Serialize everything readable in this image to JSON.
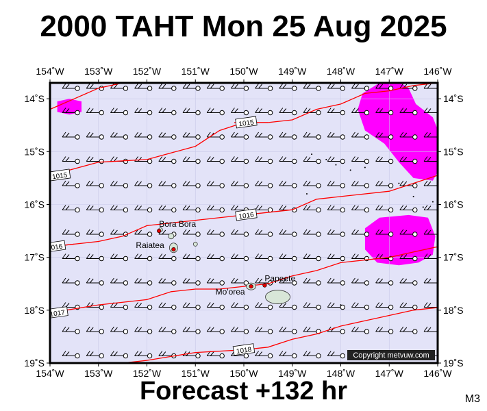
{
  "title": "2000 TAHT Mon 25 Aug 2025",
  "subtitle": "Forecast +132 hr",
  "code": "M3",
  "copyright": "Copyright metvuw.com",
  "colors": {
    "ocean": "#e3e3f8",
    "precip": "#ff00ff",
    "isobar": "#ff0000",
    "land": "#d8e6d8",
    "town": "#e00000",
    "copyright_bg": "#222222"
  },
  "map": {
    "lon_range": [
      -154,
      -146
    ],
    "lat_range": [
      -19,
      -13.7
    ],
    "lon_ticks": [
      {
        "value": -154,
        "label": "154˚W"
      },
      {
        "value": -153,
        "label": "153˚W"
      },
      {
        "value": -152,
        "label": "152˚W"
      },
      {
        "value": -151,
        "label": "151˚W"
      },
      {
        "value": -150,
        "label": "150˚W"
      },
      {
        "value": -149,
        "label": "149˚W"
      },
      {
        "value": -148,
        "label": "148˚W"
      },
      {
        "value": -147,
        "label": "147˚W"
      },
      {
        "value": -146,
        "label": "146˚W"
      }
    ],
    "lat_ticks": [
      {
        "value": -14,
        "label": "14˚S"
      },
      {
        "value": -15,
        "label": "15˚S"
      },
      {
        "value": -16,
        "label": "16˚S"
      },
      {
        "value": -17,
        "label": "17˚S"
      },
      {
        "value": -18,
        "label": "18˚S"
      },
      {
        "value": -19,
        "label": "19˚S"
      }
    ],
    "isobars": [
      {
        "label": "1015",
        "points": [
          [
            -154,
            -15.45
          ],
          [
            -153,
            -15.2
          ],
          [
            -152,
            -15.15
          ],
          [
            -151,
            -14.9
          ],
          [
            -150.5,
            -14.6
          ],
          [
            -150,
            -14.45
          ],
          [
            -149.5,
            -14.45
          ],
          [
            -149,
            -14.4
          ],
          [
            -148.5,
            -14.2
          ],
          [
            -148,
            -14.1
          ],
          [
            -147.5,
            -13.9
          ],
          [
            -147,
            -13.85
          ],
          [
            -146.5,
            -13.75
          ],
          [
            -146,
            -13.7
          ]
        ],
        "label_at": [
          -153.8,
          -15.45
        ]
      },
      {
        "label": "1015",
        "points": [
          [
            -154,
            -14.2
          ],
          [
            -153.5,
            -14.0
          ],
          [
            -153,
            -13.8
          ],
          [
            -152.5,
            -13.7
          ]
        ],
        "label_at": null
      },
      {
        "label": "1015",
        "points": [
          [
            -150.2,
            -14.45
          ],
          [
            -149.5,
            -14.45
          ]
        ],
        "label_at": [
          -149.95,
          -14.45
        ]
      },
      {
        "label": "1016",
        "points": [
          [
            -154,
            -16.8
          ],
          [
            -153,
            -16.7
          ],
          [
            -152.5,
            -16.6
          ],
          [
            -152,
            -16.4
          ],
          [
            -151.5,
            -16.35
          ],
          [
            -151,
            -16.3
          ],
          [
            -150,
            -16.2
          ],
          [
            -149,
            -16.1
          ],
          [
            -148.5,
            -15.9
          ],
          [
            -148,
            -15.85
          ],
          [
            -147,
            -15.75
          ],
          [
            -146.5,
            -15.6
          ],
          [
            -146,
            -15.45
          ]
        ],
        "label_at": [
          -149.95,
          -16.2
        ]
      },
      {
        "label": "1016",
        "points": [
          [
            -154,
            -16.8
          ],
          [
            -153.5,
            -16.75
          ]
        ],
        "label_at": [
          -153.9,
          -16.8
        ]
      },
      {
        "label": "1017",
        "points": [
          [
            -154,
            -18.05
          ],
          [
            -153,
            -17.9
          ],
          [
            -152,
            -17.8
          ],
          [
            -151.5,
            -17.65
          ],
          [
            -151,
            -17.6
          ],
          [
            -150.5,
            -17.6
          ],
          [
            -150,
            -17.55
          ],
          [
            -149.5,
            -17.5
          ],
          [
            -149,
            -17.35
          ],
          [
            -148.5,
            -17.25
          ],
          [
            -148,
            -17.1
          ],
          [
            -147,
            -17.0
          ],
          [
            -146.5,
            -16.9
          ],
          [
            -146,
            -16.8
          ]
        ],
        "label_at": [
          -153.85,
          -18.05
        ]
      },
      {
        "label": "1018",
        "points": [
          [
            -153,
            -19.05
          ],
          [
            -152,
            -18.95
          ],
          [
            -151,
            -18.8
          ],
          [
            -150,
            -18.75
          ],
          [
            -149.5,
            -18.7
          ],
          [
            -149,
            -18.55
          ],
          [
            -148.5,
            -18.45
          ],
          [
            -148,
            -18.3
          ],
          [
            -147.5,
            -18.2
          ],
          [
            -147,
            -18.1
          ],
          [
            -146.5,
            -18.0
          ],
          [
            -146,
            -17.95
          ]
        ],
        "label_at": [
          -150.0,
          -18.75
        ]
      }
    ],
    "precip_areas": [
      {
        "points": [
          [
            -153.85,
            -14.05
          ],
          [
            -153.6,
            -14.0
          ],
          [
            -153.35,
            -14.05
          ],
          [
            -153.35,
            -14.25
          ],
          [
            -153.6,
            -14.3
          ],
          [
            -153.85,
            -14.25
          ]
        ]
      },
      {
        "points": [
          [
            -147.55,
            -13.9
          ],
          [
            -147.2,
            -13.7
          ],
          [
            -146.85,
            -13.65
          ],
          [
            -146.6,
            -13.8
          ],
          [
            -146.45,
            -14.1
          ],
          [
            -146.1,
            -14.35
          ],
          [
            -145.95,
            -14.7
          ],
          [
            -145.95,
            -15.3
          ],
          [
            -146.1,
            -15.55
          ],
          [
            -146.5,
            -15.5
          ],
          [
            -146.8,
            -15.2
          ],
          [
            -147.1,
            -14.85
          ],
          [
            -147.5,
            -14.6
          ],
          [
            -147.65,
            -14.2
          ]
        ]
      },
      {
        "points": [
          [
            -147.5,
            -16.45
          ],
          [
            -147.2,
            -16.25
          ],
          [
            -146.6,
            -16.2
          ],
          [
            -146.2,
            -16.25
          ],
          [
            -146.05,
            -16.6
          ],
          [
            -146.1,
            -16.95
          ],
          [
            -146.4,
            -17.1
          ],
          [
            -146.8,
            -17.15
          ],
          [
            -147.25,
            -17.1
          ],
          [
            -147.5,
            -16.85
          ]
        ]
      }
    ],
    "places": [
      {
        "name": "Bora Bora",
        "lon": -151.75,
        "lat": -16.5,
        "label_dx": 0,
        "label_dy": -6
      },
      {
        "name": "Raiatea",
        "lon": -151.45,
        "lat": -16.85,
        "label_dx": -55,
        "label_dy": -2
      },
      {
        "name": "Mo'orea",
        "lon": -149.85,
        "lat": -17.55,
        "label_dx": -52,
        "label_dy": 12
      },
      {
        "name": "Papeete",
        "lon": -149.57,
        "lat": -17.53,
        "label_dx": 0,
        "label_dy": -6
      }
    ],
    "islands": [
      {
        "lon": -149.3,
        "lat": -17.75,
        "rx": 18,
        "ry": 10
      },
      {
        "lon": -149.85,
        "lat": -17.55,
        "rx": 7,
        "ry": 5
      },
      {
        "lon": -151.45,
        "lat": -16.82,
        "rx": 6,
        "ry": 7
      },
      {
        "lon": -151.5,
        "lat": -16.6,
        "rx": 4,
        "ry": 4
      },
      {
        "lon": -151.72,
        "lat": -16.48,
        "rx": 3,
        "ry": 3
      },
      {
        "lon": -151.0,
        "lat": -16.75,
        "rx": 3,
        "ry": 3
      }
    ]
  }
}
